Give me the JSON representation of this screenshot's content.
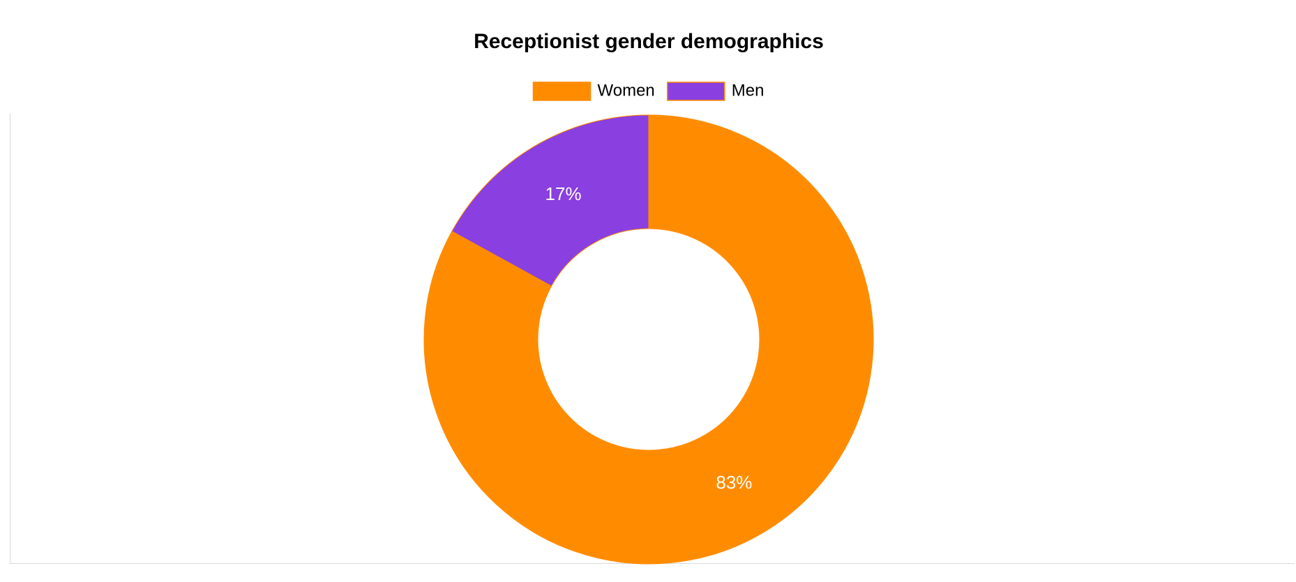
{
  "chart_data": {
    "type": "pie",
    "variant": "donut",
    "title": "Receptionist gender demographics",
    "categories": [
      "Women",
      "Men"
    ],
    "values": [
      83,
      17
    ],
    "value_labels": [
      "83%",
      "17%"
    ],
    "colors": [
      "#ff8c00",
      "#8a3fe0"
    ],
    "slice_border_color": "#ff8c00",
    "label_color": "#ffffff",
    "legend": {
      "position": "top-center",
      "entries": [
        "Women",
        "Men"
      ]
    },
    "start_angle": "top",
    "direction": "clockwise",
    "grid": false
  }
}
